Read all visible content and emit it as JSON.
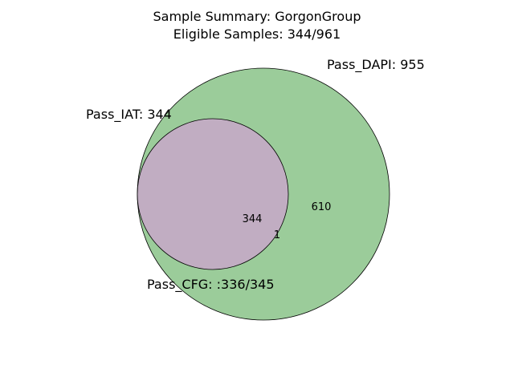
{
  "title": {
    "line1": "Sample Summary: GorgonGroup",
    "line2": "Eligible Samples: 344/961"
  },
  "sets": [
    {
      "key": "dapi",
      "label": "Pass_DAPI: 955",
      "color": "#9bcc9a"
    },
    {
      "key": "iat",
      "label": "Pass_IAT: 344",
      "color": "#c1adc2"
    },
    {
      "key": "cfg",
      "label": "Pass_CFG: :336/345"
    }
  ],
  "regions": {
    "iat_and_dapi": "344",
    "dapi_only": "610",
    "dapi_minus_iat_small": "1"
  }
}
